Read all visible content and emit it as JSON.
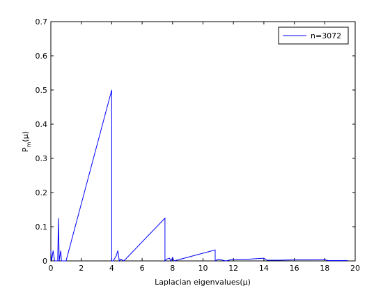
{
  "chart_data": {
    "type": "line",
    "xlabel": "Laplacian eigenvalues(μ)",
    "ylabel": {
      "base": "P",
      "sub": "m",
      "rest": "(μ)"
    },
    "x": [
      0,
      0.05,
      0.15,
      0.25,
      0.45,
      0.5,
      0.55,
      0.65,
      0.7,
      0.8,
      1.0,
      4.0,
      4.0,
      4.1,
      4.3,
      4.4,
      4.5,
      4.6,
      4.8,
      7.5,
      7.5,
      7.6,
      7.8,
      7.9,
      8.0,
      8.1,
      10.8,
      10.8,
      11.0,
      11.5,
      12,
      13,
      14,
      14.2,
      15,
      16,
      17,
      18,
      18.2,
      19.5
    ],
    "series": [
      {
        "name": "n=3072",
        "color": "#0000ff",
        "values": [
          0.03,
          0,
          0.03,
          0,
          0,
          0.125,
          0,
          0.03,
          0,
          0,
          0,
          0.5,
          0,
          0,
          0.015,
          0.03,
          0,
          0.005,
          0,
          0.125,
          0,
          0.005,
          0.008,
          0,
          0.01,
          0,
          0.032,
          0,
          0.005,
          0,
          0.005,
          0.005,
          0.008,
          0.002,
          0.002,
          0.003,
          0.003,
          0.004,
          0.001,
          0.001
        ]
      }
    ],
    "xlim": [
      0,
      20
    ],
    "xticks": [
      0,
      2,
      4,
      6,
      8,
      10,
      12,
      14,
      16,
      18,
      20
    ],
    "ylim": [
      0,
      0.7
    ],
    "yticks": [
      0,
      0.1,
      0.2,
      0.3,
      0.4,
      0.5,
      0.6,
      0.7
    ],
    "legend": "upper right"
  }
}
